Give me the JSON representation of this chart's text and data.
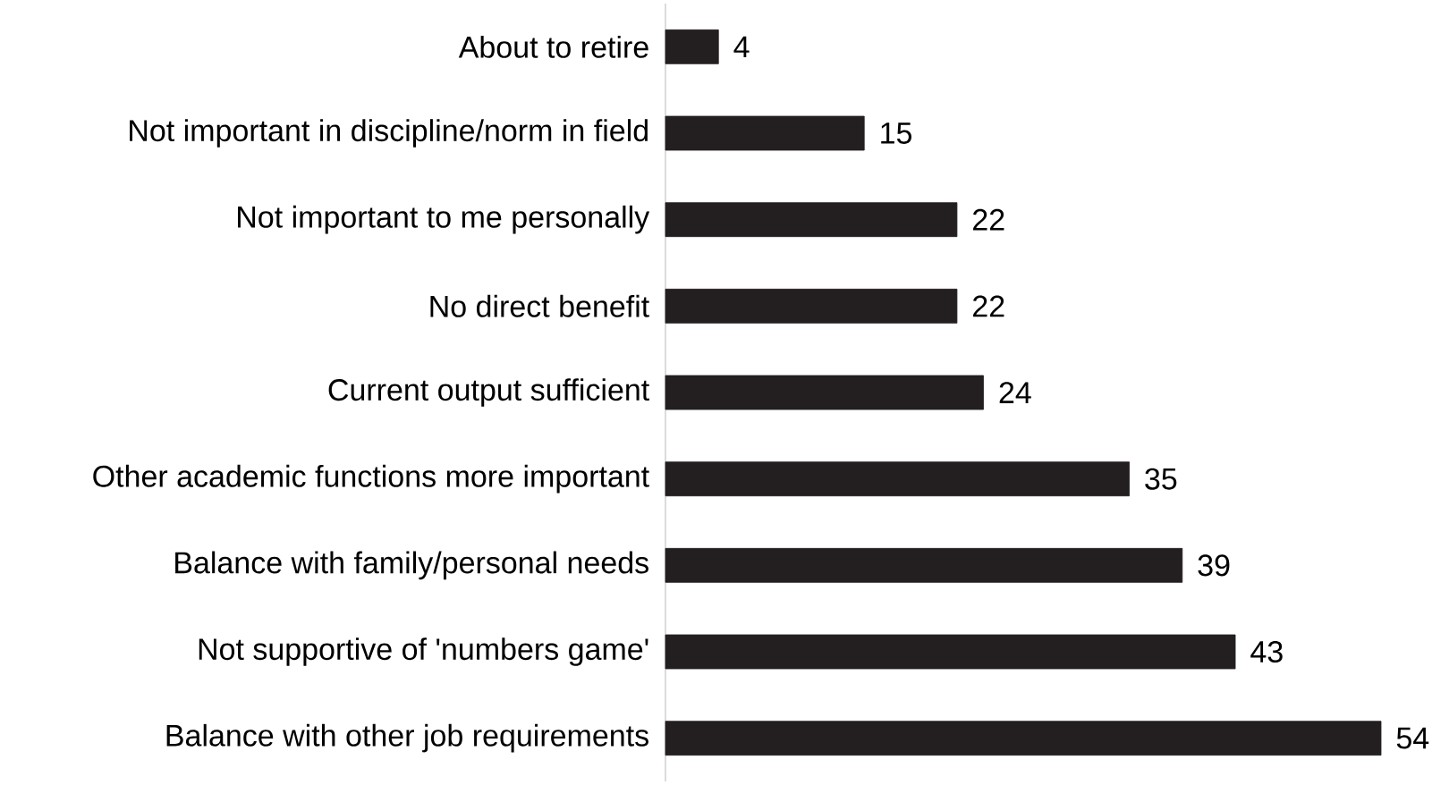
{
  "chart_data": {
    "type": "bar",
    "orientation": "horizontal",
    "categories": [
      "About to retire",
      "Not important in discipline/norm in field",
      "Not important to me personally",
      "No direct benefit",
      "Current output sufficient",
      "Other academic functions more important",
      "Balance with family/personal needs",
      "Not supportive of 'numbers game'",
      "Balance with other job requirements"
    ],
    "values": [
      4,
      15,
      22,
      22,
      24,
      35,
      39,
      43,
      54
    ],
    "color": "#231f20",
    "data_labels": true
  }
}
